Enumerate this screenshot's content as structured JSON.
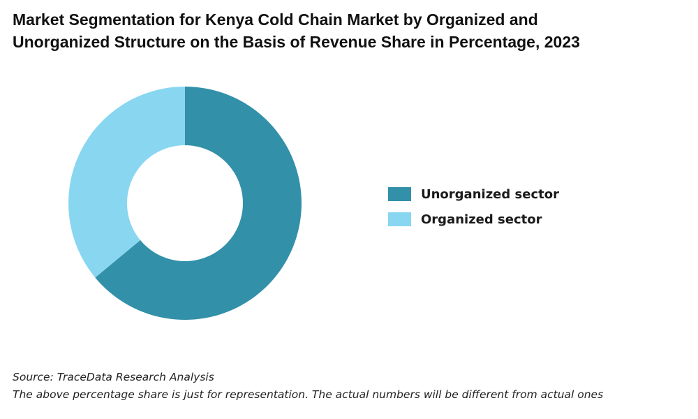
{
  "title_line1": "Market Segmentation for Kenya Cold Chain Market by Organized and",
  "title_line2": "Unorganized Structure on the Basis of Revenue Share in Percentage, 2023",
  "source": "Source: TraceData Research Analysis",
  "note": "The above percentage share is just for representation. The actual numbers will be different from actual ones",
  "chart_data": {
    "type": "pie",
    "donut": true,
    "start_angle_deg": 0,
    "direction": "clockwise",
    "legend_position": "right",
    "series": [
      {
        "name": "Unorganized sector",
        "value": 64,
        "color": "#3290A9"
      },
      {
        "name": "Organized sector",
        "value": 36,
        "color": "#89D6F1"
      }
    ]
  }
}
